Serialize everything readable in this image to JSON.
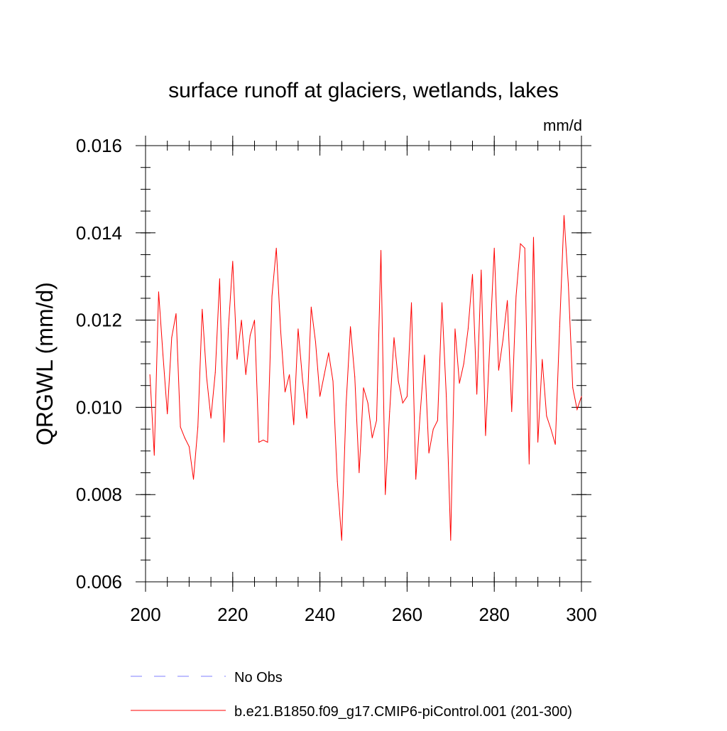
{
  "chart_data": {
    "type": "line",
    "title": "surface runoff at glaciers, wetlands, lakes",
    "units": "mm/d",
    "xlabel": "",
    "ylabel": "QRGWL  (mm/d)",
    "xlim": [
      200,
      300
    ],
    "ylim": [
      0.006,
      0.016
    ],
    "x_ticks": [
      200,
      220,
      240,
      260,
      280,
      300
    ],
    "x_tick_labels": [
      "200",
      "220",
      "240",
      "260",
      "280",
      "300"
    ],
    "y_ticks": [
      0.006,
      0.008,
      0.01,
      0.012,
      0.014,
      0.016
    ],
    "y_tick_labels": [
      "0.006",
      "0.008",
      "0.010",
      "0.012",
      "0.014",
      "0.016"
    ],
    "x_minor_step": 5,
    "y_minor_step": 0.0005,
    "grid": false,
    "legend_position": "bottom",
    "series": [
      {
        "name": "b.e21.B1850.f09_g17.CMIP6-piControl.001 (201-300)",
        "color": "#ff0000",
        "style": "solid",
        "x": [
          201,
          202,
          203,
          204,
          205,
          206,
          207,
          208,
          209,
          210,
          211,
          212,
          213,
          214,
          215,
          216,
          217,
          218,
          219,
          220,
          221,
          222,
          223,
          224,
          225,
          226,
          227,
          228,
          229,
          230,
          231,
          232,
          233,
          234,
          235,
          236,
          237,
          238,
          239,
          240,
          241,
          242,
          243,
          244,
          245,
          246,
          247,
          248,
          249,
          250,
          251,
          252,
          253,
          254,
          255,
          256,
          257,
          258,
          259,
          260,
          261,
          262,
          263,
          264,
          265,
          266,
          267,
          268,
          269,
          270,
          271,
          272,
          273,
          274,
          275,
          276,
          277,
          278,
          279,
          280,
          281,
          282,
          283,
          284,
          285,
          286,
          287,
          288,
          289,
          290,
          291,
          292,
          293,
          294,
          295,
          296,
          297,
          298,
          299,
          300
        ],
        "values": [
          0.01075,
          0.0089,
          0.01265,
          0.0112,
          0.00985,
          0.0116,
          0.01215,
          0.00955,
          0.0093,
          0.0091,
          0.00835,
          0.00955,
          0.01225,
          0.0107,
          0.00975,
          0.0108,
          0.01295,
          0.0092,
          0.0118,
          0.01335,
          0.0111,
          0.012,
          0.01075,
          0.01165,
          0.012,
          0.0092,
          0.00925,
          0.0092,
          0.01255,
          0.01365,
          0.01175,
          0.01035,
          0.01075,
          0.0096,
          0.0118,
          0.01065,
          0.00975,
          0.0123,
          0.0115,
          0.01025,
          0.01075,
          0.01125,
          0.0106,
          0.0083,
          0.00695,
          0.01005,
          0.01185,
          0.0107,
          0.0085,
          0.01045,
          0.0101,
          0.0093,
          0.0097,
          0.0136,
          0.008,
          0.0099,
          0.0116,
          0.0106,
          0.0101,
          0.01025,
          0.0124,
          0.00835,
          0.00985,
          0.0112,
          0.00895,
          0.0095,
          0.0097,
          0.0124,
          0.01025,
          0.00695,
          0.0118,
          0.01055,
          0.011,
          0.0118,
          0.01305,
          0.0103,
          0.01315,
          0.00935,
          0.0115,
          0.01365,
          0.01085,
          0.01155,
          0.01245,
          0.0099,
          0.01255,
          0.01375,
          0.01365,
          0.0087,
          0.0139,
          0.0092,
          0.0111,
          0.0098,
          0.0095,
          0.00915,
          0.01185,
          0.0144,
          0.0128,
          0.01045,
          0.00995,
          0.01025
        ]
      },
      {
        "name": "No Obs",
        "color": "#7f7fff",
        "style": "dashed",
        "x": [],
        "values": []
      }
    ]
  }
}
